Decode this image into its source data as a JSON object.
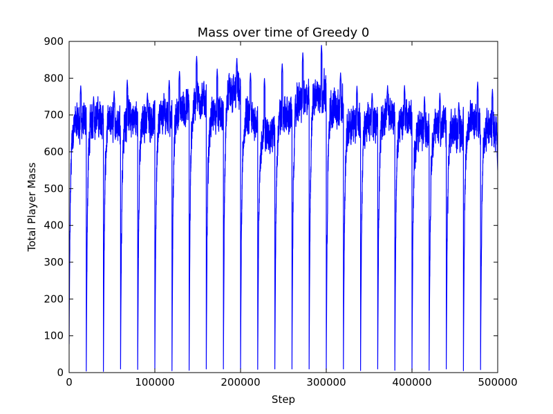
{
  "chart_data": {
    "type": "line",
    "title": "Mass over time of Greedy 0",
    "xlabel": "Step",
    "ylabel": "Total Player Mass",
    "xlim": [
      0,
      500000
    ],
    "ylim": [
      0,
      900
    ],
    "x_ticks": [
      "0",
      "100000",
      "200000",
      "300000",
      "400000",
      "500000"
    ],
    "y_ticks": [
      "0",
      "100",
      "200",
      "300",
      "400",
      "500",
      "600",
      "700",
      "800",
      "900"
    ],
    "grid": false,
    "legend": "none",
    "series": [
      {
        "color": "#0000ff",
        "reset_steps": [
          20000,
          40000,
          60000,
          80000,
          100000,
          120000,
          140000,
          160000,
          180000,
          200000,
          220000,
          240000,
          260000,
          280000,
          300000,
          320000,
          340000,
          360000,
          380000,
          400000,
          420000,
          440000,
          460000,
          480000
        ],
        "cycle_peak_mass": [
          780,
          750,
          765,
          795,
          760,
          795,
          820,
          860,
          825,
          855,
          815,
          800,
          840,
          870,
          890,
          815,
          780,
          760,
          780,
          780,
          750,
          760,
          735,
          790,
          770
        ],
        "cycle_plateau_mass": [
          680,
          690,
          680,
          690,
          690,
          700,
          720,
          740,
          700,
          760,
          690,
          650,
          700,
          740,
          760,
          720,
          680,
          680,
          700,
          690,
          660,
          670,
          660,
          680,
          660
        ],
        "cycle_start_mass": [
          80,
          10,
          10,
          10,
          10,
          10,
          10,
          10,
          10,
          10,
          10,
          10,
          10,
          10,
          10,
          10,
          10,
          10,
          10,
          10,
          10,
          10,
          10,
          10,
          10
        ],
        "final_mass": 550
      }
    ]
  }
}
